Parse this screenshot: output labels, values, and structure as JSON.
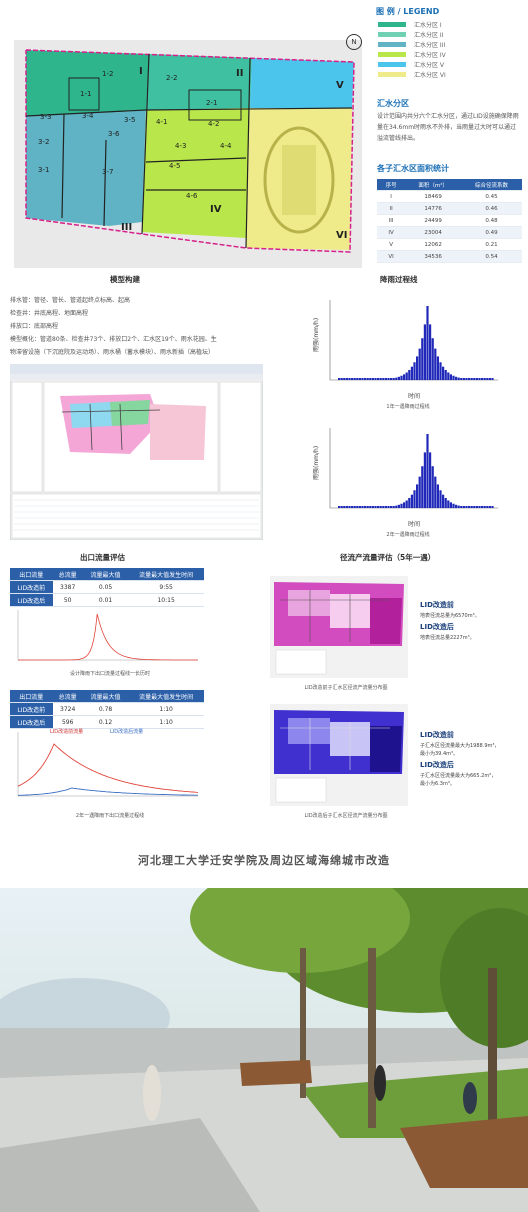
{
  "legend": {
    "title": "图 例 / LEGEND",
    "items": [
      {
        "label": "汇水分区 I",
        "color": "#2fb58c"
      },
      {
        "label": "汇水分区 II",
        "color": "#6fd0b4"
      },
      {
        "label": "汇水分区 III",
        "color": "#5fb3c4"
      },
      {
        "label": "汇水分区 IV",
        "color": "#b9e64a"
      },
      {
        "label": "汇水分区 V",
        "color": "#4cc5ec"
      },
      {
        "label": "汇水分区 VI",
        "color": "#efeb8a"
      }
    ]
  },
  "map": {
    "zone_labels": [
      "I",
      "II",
      "III",
      "IV",
      "V",
      "VI"
    ],
    "sub_labels": [
      "1-1",
      "1-2",
      "2-1",
      "2-2",
      "3-1",
      "3-2",
      "3-3",
      "3-4",
      "3-5",
      "3-6",
      "3-7",
      "4-1",
      "4-2",
      "4-3",
      "4-4",
      "4-5",
      "4-6"
    ],
    "north": "N"
  },
  "catchment": {
    "title": "汇水分区",
    "text": "设计范围内共分六个汇水分区，通过LID设施确保降雨量在34.6mm时雨水不外排，当雨量过大时可以通过溢流管线排出。"
  },
  "area_stats": {
    "title": "各子汇水区面积统计",
    "headers": [
      "序号",
      "面积（m²）",
      "综合径流系数"
    ],
    "rows": [
      [
        "I",
        "18469",
        "0.45"
      ],
      [
        "II",
        "14776",
        "0.46"
      ],
      [
        "III",
        "24499",
        "0.48"
      ],
      [
        "IV",
        "23004",
        "0.49"
      ],
      [
        "V",
        "12062",
        "0.21"
      ],
      [
        "VI",
        "34536",
        "0.54"
      ]
    ]
  },
  "model": {
    "title": "模型构建",
    "lines": [
      "排水管：管径、管长、管道起终点标高、起高",
      "检查井：井底高程、地面高程",
      "排放口：底部高程",
      "模型概化：管道80条、检查井73个、排放口2个、汇水区19个、雨水花园、生",
      "物滞留设施（下沉庭院及运动场）、雨水桶（蓄水模块）、雨水新插（高植坛）"
    ]
  },
  "rain": {
    "title": "降雨过程线",
    "ylabel": "雨强(mm/h)",
    "xlabel": "时间",
    "caption1": "1年一遇降雨过程线",
    "caption2": "2年一遇降雨过程线"
  },
  "outlet": {
    "title": "出口流量评估",
    "headers": [
      "出口流量",
      "总流量",
      "流量最大值",
      "流量最大值发生时间"
    ],
    "table1": [
      [
        "LID改造前",
        "3387",
        "0.05",
        "9:55"
      ],
      [
        "LID改造后",
        "50",
        "0.01",
        "10:15"
      ]
    ],
    "caption1": "设计降雨下出口流量过程线一长历时",
    "table2": [
      [
        "LID改造前",
        "3724",
        "0.78",
        "1:10"
      ],
      [
        "LID改造后",
        "596",
        "0.12",
        "1:10"
      ]
    ],
    "legend_before": "LID改造前流量",
    "legend_after": "LID改造后流量",
    "caption2": "2年一遇降雨下出口流量过程线"
  },
  "runoff": {
    "title": "径流产流量评估（5年一遇）",
    "a_before_h": "LID改造前",
    "a_before_t": "地表径流总量为6570m³。",
    "a_after_h": "LID改造后",
    "a_after_t": "地表径流总量2227m³。",
    "caption_a": "LID改造前子汇水区径流产流量分布图",
    "b_before_h": "LID改造前",
    "b_before_t1": "子汇水区径流量最大为1988.9m³，",
    "b_before_t2": "最小为39.4m³。",
    "b_after_h": "LID改造后",
    "b_after_t1": "子汇水区径流量最大为665.2m³，",
    "b_after_t2": "最小为6.3m³。",
    "caption_b": "LID改造后子汇水区径流产流量分布图"
  },
  "bottom": {
    "title": "河北理工大学迁安学院及周边区域海绵城市改造"
  }
}
